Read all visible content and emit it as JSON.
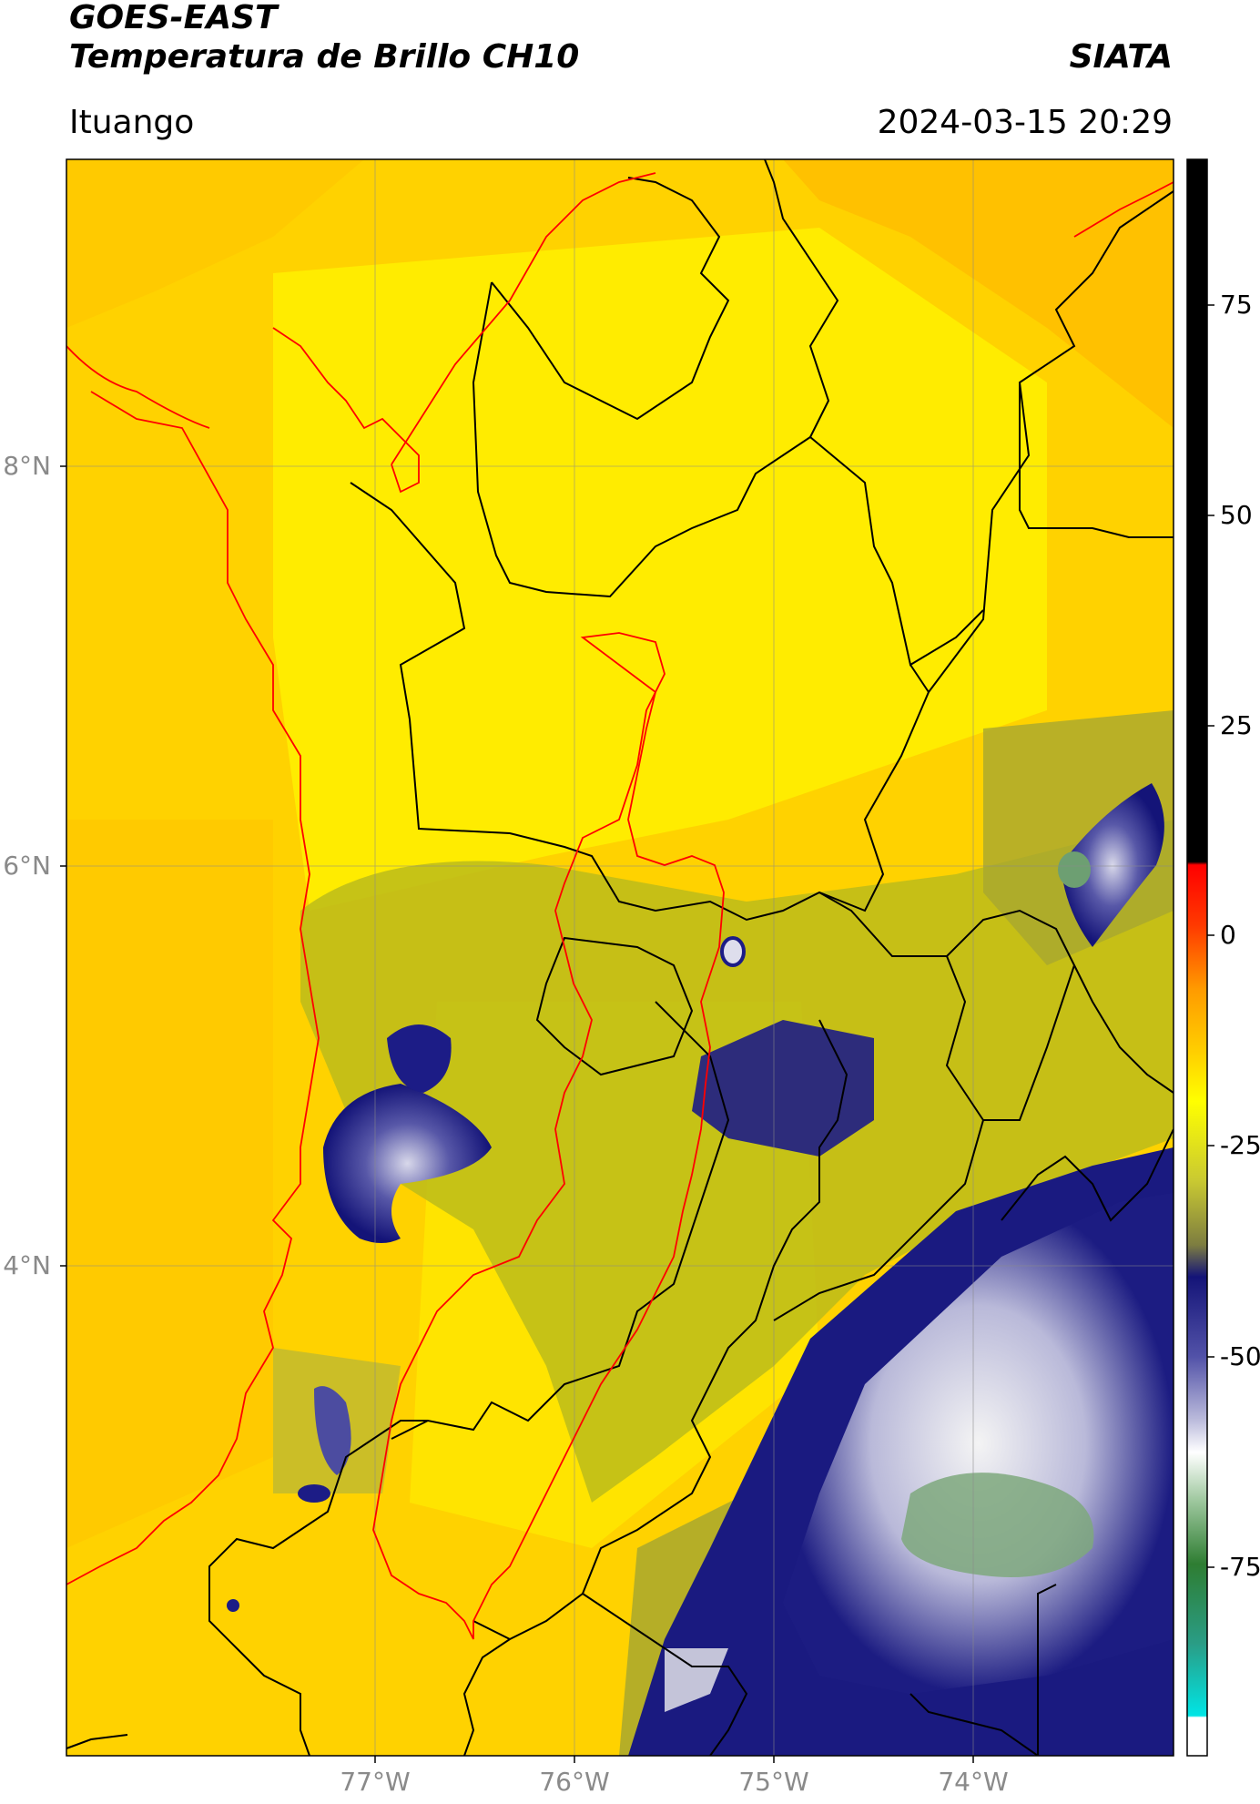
{
  "header": {
    "title_line1": "GOES-EAST",
    "title_line2": "Temperatura de Brillo CH10",
    "brand": "SIATA",
    "location": "Ituango",
    "datetime": "2024-03-15 20:29"
  },
  "map": {
    "lat_labels": [
      "8°N",
      "6°N",
      "4°N"
    ],
    "lon_labels": [
      "77°W",
      "76°W",
      "75°W",
      "74°W"
    ]
  },
  "colorbar": {
    "tick_labels": [
      "75",
      "50",
      "25",
      "0",
      "-25",
      "-50",
      "-75"
    ],
    "range": [
      -95,
      90
    ],
    "colors": {
      "black": "#000000",
      "red": "#ff0000",
      "orange": "#ffa500",
      "yellow": "#ffff00",
      "olive": "#8f8f2a",
      "navy": "#141478",
      "white": "#ffffff",
      "green": "#2e7d32",
      "cyan": "#00e5e5"
    }
  }
}
